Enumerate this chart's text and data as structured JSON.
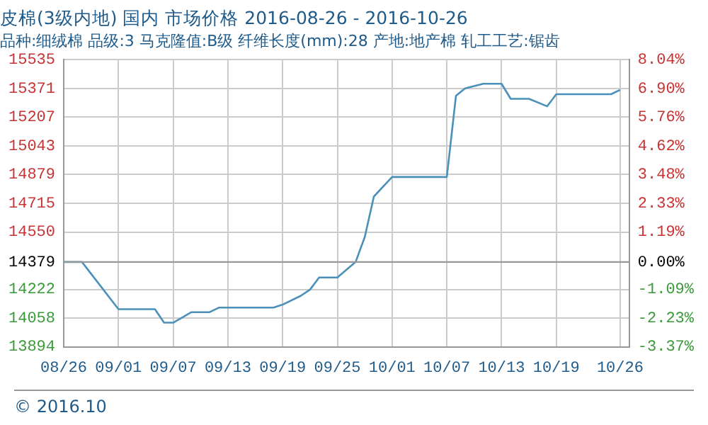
{
  "chart_data": {
    "type": "line",
    "title": "皮棉(3级内地) 国内 市场价格 2016-08-26 - 2016-10-26",
    "subtitle": "品种:细绒棉 品级:3 马克隆值:B级 纤维长度(mm):28 产地:地产棉 轧工工艺:锯齿",
    "x": [
      "2016-08-26",
      "2016-08-28",
      "2016-09-01",
      "2016-09-05",
      "2016-09-06",
      "2016-09-07",
      "2016-09-09",
      "2016-09-11",
      "2016-09-12",
      "2016-09-18",
      "2016-09-19",
      "2016-09-21",
      "2016-09-22",
      "2016-09-23",
      "2016-09-25",
      "2016-09-27",
      "2016-09-28",
      "2016-09-29",
      "2016-10-01",
      "2016-10-07",
      "2016-10-08",
      "2016-10-09",
      "2016-10-11",
      "2016-10-13",
      "2016-10-14",
      "2016-10-16",
      "2016-10-18",
      "2016-10-19",
      "2016-10-25",
      "2016-10-26"
    ],
    "series": [
      {
        "color": "#4a90b8",
        "values": [
          14379,
          14379,
          14109,
          14109,
          14032,
          14032,
          14092,
          14092,
          14118,
          14118,
          14135,
          14186,
          14221,
          14290,
          14290,
          14379,
          14521,
          14753,
          14865,
          14865,
          15329,
          15372,
          15398,
          15398,
          15312,
          15312,
          15269,
          15338,
          15338,
          15363
        ]
      }
    ],
    "xlim": [
      "2016-08-26",
      "2016-10-27"
    ],
    "xticks": [
      {
        "value": "2016-08-26",
        "label": "08/26"
      },
      {
        "value": "2016-09-01",
        "label": "09/01"
      },
      {
        "value": "2016-09-07",
        "label": "09/07"
      },
      {
        "value": "2016-09-13",
        "label": "09/13"
      },
      {
        "value": "2016-09-19",
        "label": "09/19"
      },
      {
        "value": "2016-09-25",
        "label": "09/25"
      },
      {
        "value": "2016-10-01",
        "label": "10/01"
      },
      {
        "value": "2016-10-07",
        "label": "10/07"
      },
      {
        "value": "2016-10-13",
        "label": "10/13"
      },
      {
        "value": "2016-10-19",
        "label": "10/19"
      },
      {
        "value": "2016-10-26",
        "label": "10/26"
      }
    ],
    "ylim": [
      13894,
      15535
    ],
    "yticks": [
      13894,
      14058,
      14222,
      14379,
      14550,
      14715,
      14879,
      15043,
      15207,
      15371,
      15535
    ],
    "y2lim": [
      -3.37,
      8.04
    ],
    "y2ticks": [
      {
        "value": -3.37,
        "label": "-3.37%"
      },
      {
        "value": -2.23,
        "label": "-2.23%"
      },
      {
        "value": -1.09,
        "label": "-1.09%"
      },
      {
        "value": 0,
        "label": "0.00%"
      },
      {
        "value": 1.19,
        "label": "1.19%"
      },
      {
        "value": 2.33,
        "label": "2.33%"
      },
      {
        "value": 3.48,
        "label": "3.48%"
      },
      {
        "value": 4.62,
        "label": "4.62%"
      },
      {
        "value": 5.76,
        "label": "5.76%"
      },
      {
        "value": 6.9,
        "label": "6.90%"
      },
      {
        "value": 8.04,
        "label": "8.04%"
      }
    ],
    "ref_lines": [
      {
        "axis": "y",
        "value": 14379,
        "color": "#999999"
      }
    ],
    "grid": true,
    "legend": false,
    "marker": "none",
    "line_style": "solid",
    "annotations": [
      "© 2016.10"
    ]
  }
}
